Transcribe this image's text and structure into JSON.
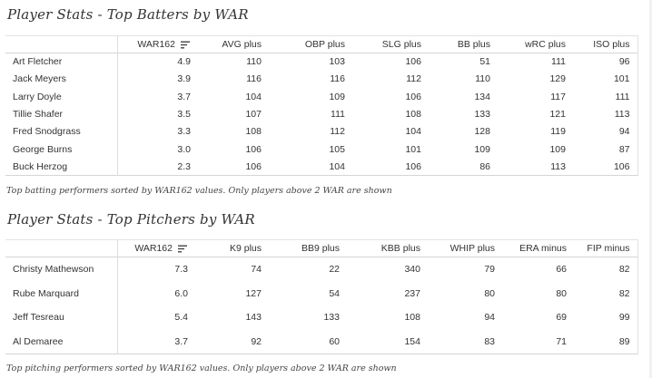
{
  "batting": {
    "title": "Player Stats - Top Batters by WAR",
    "columns": [
      "WAR162",
      "AVG plus",
      "OBP plus",
      "SLG plus",
      "BB plus",
      "wRC plus",
      "ISO plus"
    ],
    "rows": [
      [
        "Art Fletcher",
        "4.9",
        "110",
        "103",
        "106",
        "51",
        "111",
        "96"
      ],
      [
        "Jack Meyers",
        "3.9",
        "116",
        "116",
        "112",
        "110",
        "129",
        "101"
      ],
      [
        "Larry Doyle",
        "3.7",
        "104",
        "109",
        "106",
        "134",
        "117",
        "111"
      ],
      [
        "Tillie Shafer",
        "3.5",
        "107",
        "111",
        "108",
        "133",
        "121",
        "113"
      ],
      [
        "Fred Snodgrass",
        "3.3",
        "108",
        "112",
        "104",
        "128",
        "119",
        "94"
      ],
      [
        "George Burns",
        "3.0",
        "106",
        "105",
        "101",
        "109",
        "109",
        "87"
      ],
      [
        "Buck Herzog",
        "2.3",
        "106",
        "104",
        "106",
        "86",
        "113",
        "106"
      ]
    ],
    "caption": "Top batting performers sorted by WAR162 values. Only players above 2 WAR are shown",
    "sort_icon": "sort-descending-icon"
  },
  "pitching": {
    "title": "Player Stats - Top Pitchers by WAR",
    "columns": [
      "WAR162",
      "K9 plus",
      "BB9 plus",
      "KBB plus",
      "WHIP plus",
      "ERA minus",
      "FIP minus"
    ],
    "rows": [
      [
        "Christy Mathewson",
        "7.3",
        "74",
        "22",
        "340",
        "79",
        "66",
        "82"
      ],
      [
        "Rube Marquard",
        "6.0",
        "127",
        "54",
        "237",
        "80",
        "80",
        "82"
      ],
      [
        "Jeff Tesreau",
        "5.4",
        "143",
        "133",
        "108",
        "94",
        "69",
        "99"
      ],
      [
        "Al Demaree",
        "3.7",
        "92",
        "60",
        "154",
        "83",
        "71",
        "89"
      ]
    ],
    "caption": "Top pitching performers sorted by WAR162 values. Only players above 2 WAR are shown",
    "sort_icon": "sort-descending-icon"
  }
}
